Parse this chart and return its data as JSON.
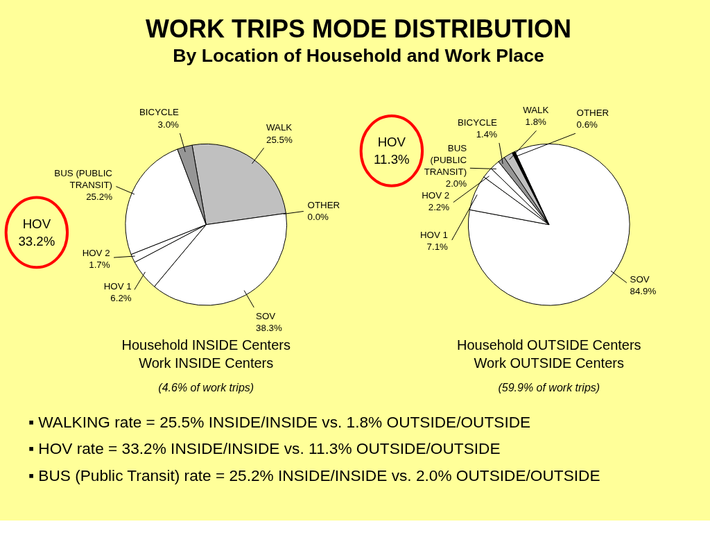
{
  "chart_data": [
    {
      "type": "pie",
      "title": "WORK TRIPS MODE DISTRIBUTION",
      "subtitle": "By Location of Household and Work Place",
      "xlabel": "Household INSIDE Centers\nWork INSIDE Centers",
      "categories": [
        "WALK",
        "OTHER",
        "SOV",
        "HOV 1",
        "HOV 2",
        "BUS (PUBLIC\nTRANSIT)",
        "BICYCLE"
      ],
      "values": [
        25.5,
        0.0,
        38.3,
        6.2,
        1.7,
        25.2,
        3.0
      ],
      "value_labels": [
        "25.5%",
        "0.0%",
        "38.3%",
        "6.2%",
        "1.7%",
        "25.2%",
        "3.0%"
      ],
      "colors": [
        "#c0c0c0",
        "#ffffff",
        "#ffffff",
        "#ffffff",
        "#ffffff",
        "#ffffff",
        "#969696"
      ],
      "annotations": [
        "HOV\n33.2%",
        "(4.6% of work trips)"
      ]
    },
    {
      "type": "pie",
      "xlabel": "Household OUTSIDE Centers\nWork OUTSIDE Centers",
      "categories": [
        "SOV",
        "HOV 1",
        "HOV 2",
        "BUS\n(PUBLIC\nTRANSIT)",
        "BICYCLE",
        "WALK",
        "OTHER"
      ],
      "values": [
        84.9,
        7.1,
        2.2,
        2.0,
        1.4,
        1.8,
        0.6
      ],
      "value_labels": [
        "84.9%",
        "7.1%",
        "2.2%",
        "2.0%",
        "1.4%",
        "1.8%",
        "0.6%"
      ],
      "colors": [
        "#ffffff",
        "#ffffff",
        "#ffffff",
        "#ffffff",
        "#969696",
        "#c0c0c0",
        "#000000"
      ],
      "annotations": [
        "HOV\n11.3%",
        "(59.9% of work trips)",
        "▪ WALKING rate = 25.5% INSIDE/INSIDE vs. 1.8% OUTSIDE/OUTSIDE",
        "▪ HOV rate = 33.2% INSIDE/INSIDE vs. 11.3% OUTSIDE/OUTSIDE",
        "▪ BUS (Public Transit) rate = 25.2% INSIDE/INSIDE vs. 2.0% OUTSIDE/OUTSIDE"
      ]
    }
  ]
}
